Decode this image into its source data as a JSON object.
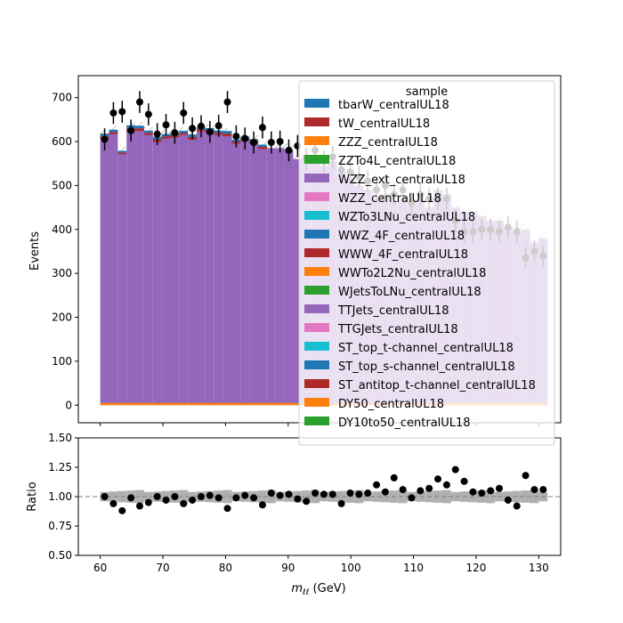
{
  "chart_data": {
    "type": "bar",
    "xlabel_main": "m",
    "xlabel_sub": "ℓℓ",
    "xlabel_unit": " (GeV)",
    "xlim": [
      56.5,
      133.5
    ],
    "xticks": [
      60,
      70,
      80,
      90,
      100,
      110,
      120,
      130
    ],
    "bin_edges_range": [
      60,
      130
    ],
    "bin_width": 1.4,
    "main": {
      "ylabel": "Events",
      "ylim": [
        -40,
        750
      ],
      "yticks": [
        0,
        100,
        200,
        300,
        400,
        500,
        600,
        700
      ]
    },
    "ratio": {
      "ylabel": "Ratio",
      "ylim": [
        0.5,
        1.5
      ],
      "yticks": [
        0.5,
        0.75,
        1.0,
        1.25,
        1.5
      ],
      "ytick_labels": [
        "0.50",
        "0.75",
        "1.00",
        "1.25",
        "1.50"
      ],
      "reference_line": 1.0,
      "values": [
        1.0,
        0.94,
        0.88,
        0.99,
        0.92,
        0.95,
        1.0,
        0.97,
        1.0,
        0.94,
        0.97,
        1.0,
        1.01,
        0.99,
        0.9,
        0.99,
        1.01,
        0.99,
        0.93,
        1.03,
        1.01,
        1.02,
        0.98,
        0.96,
        1.03,
        1.02,
        1.02,
        0.94,
        1.03,
        1.02,
        1.03,
        1.1,
        1.04,
        1.16,
        1.06,
        0.99,
        1.05,
        1.07,
        1.15,
        1.1,
        1.23,
        1.13,
        1.04,
        1.03,
        1.05,
        1.07,
        0.97,
        0.92,
        1.18,
        1.06,
        1.06
      ]
    },
    "mc_total": [
      612,
      622,
      575,
      630,
      630,
      620,
      605,
      612,
      615,
      620,
      610,
      628,
      625,
      620,
      618,
      600,
      606,
      600,
      588,
      585,
      585,
      582,
      560,
      570,
      560,
      545,
      555,
      530,
      515,
      500,
      490,
      470,
      480,
      465,
      470,
      455,
      470,
      450,
      490,
      480,
      450,
      440,
      440,
      430,
      420,
      420,
      405,
      395,
      400,
      370,
      380
    ],
    "stack_top_extra": [
      12,
      10,
      8,
      14,
      12,
      10,
      12,
      10,
      11,
      9,
      12,
      10,
      11,
      10,
      12,
      9,
      10,
      11,
      10
    ],
    "data": [
      605,
      665,
      668,
      625,
      690,
      662,
      617,
      638,
      620,
      665,
      630,
      635,
      622,
      636,
      690,
      612,
      607,
      598,
      632,
      598,
      600,
      580,
      590,
      560,
      580,
      555,
      565,
      535,
      530,
      520,
      510,
      490,
      500,
      480,
      490,
      460,
      480,
      470,
      470,
      470,
      420,
      395,
      395,
      400,
      400,
      395,
      405,
      395,
      335,
      350,
      340
    ],
    "data_err": 25,
    "legend": {
      "title": "sample",
      "position": "upper right",
      "entries": [
        {
          "name": "tbarW_centralUL18",
          "color": "#1f77b4"
        },
        {
          "name": "tW_centralUL18",
          "color": "#ae2a2a"
        },
        {
          "name": "ZZZ_centralUL18",
          "color": "#ff7f0e"
        },
        {
          "name": "ZZTo4L_centralUL18",
          "color": "#2ca02c"
        },
        {
          "name": "WZZ_ext_centralUL18",
          "color": "#9467bd"
        },
        {
          "name": "WZZ_centralUL18",
          "color": "#e377c2"
        },
        {
          "name": "WZTo3LNu_centralUL18",
          "color": "#17becf"
        },
        {
          "name": "WWZ_4F_centralUL18",
          "color": "#1f77b4"
        },
        {
          "name": "WWW_4F_centralUL18",
          "color": "#ae2a2a"
        },
        {
          "name": "WWTo2L2Nu_centralUL18",
          "color": "#ff7f0e"
        },
        {
          "name": "WJetsToLNu_centralUL18",
          "color": "#2ca02c"
        },
        {
          "name": "TTJets_centralUL18",
          "color": "#9467bd"
        },
        {
          "name": "TTGJets_centralUL18",
          "color": "#e377c2"
        },
        {
          "name": "ST_top_t-channel_centralUL18",
          "color": "#17becf"
        },
        {
          "name": "ST_top_s-channel_centralUL18",
          "color": "#1f77b4"
        },
        {
          "name": "ST_antitop_t-channel_centralUL18",
          "color": "#ae2a2a"
        },
        {
          "name": "DY50_centralUL18",
          "color": "#ff7f0e"
        },
        {
          "name": "DY10to50_centralUL18",
          "color": "#2ca02c"
        }
      ]
    },
    "colors": {
      "stack_main": "#9467bd",
      "data": "#000000",
      "unc_band": "#b0b0b0",
      "ref_line": "#808080"
    }
  }
}
